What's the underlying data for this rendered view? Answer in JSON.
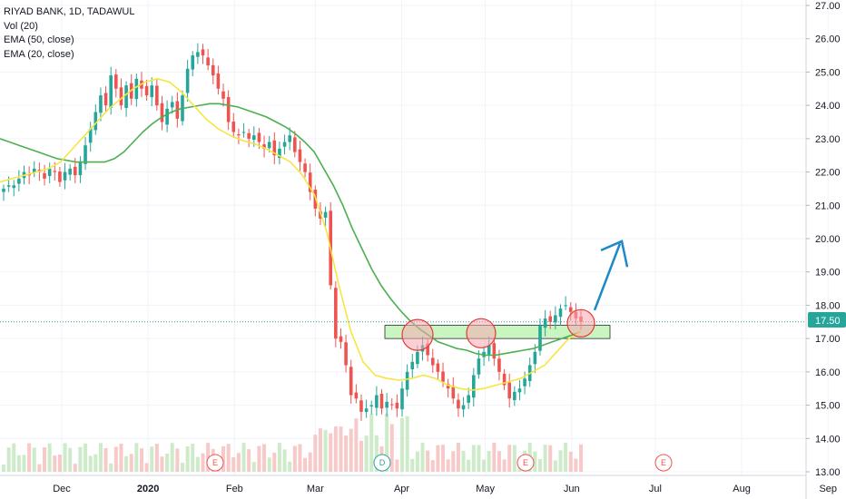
{
  "legend": {
    "symbol": "RIYAD BANK, 1D, TADAWUL",
    "vol": "Vol (20)",
    "ema50": "EMA (50, close)",
    "ema20": "EMA (20, close)"
  },
  "colors": {
    "up": "#26a69a",
    "down": "#ef5350",
    "ema50": "#4caf50",
    "ema20": "#f5e642",
    "price_line": "#26a69a",
    "zone_fill": "#c8f5c0",
    "zone_stroke": "#2a2a2a",
    "circle_fill": "#f7a8b0",
    "circle_stroke": "#e53935",
    "arrow": "#1e88c8",
    "vol_up": "#cdebc9",
    "vol_down": "#f7c9c9"
  },
  "chart_data": {
    "type": "candlestick",
    "y_ticks": [
      "27.00",
      "26.00",
      "25.00",
      "24.00",
      "23.00",
      "22.00",
      "21.00",
      "20.00",
      "19.00",
      "18.00",
      "17.00",
      "16.00",
      "15.00",
      "14.00",
      "13.00"
    ],
    "ylim": [
      13.0,
      27.0
    ],
    "last_price": "17.50",
    "months": [
      {
        "label": "Dec",
        "date": "2019-12-01"
      },
      {
        "label": "2020",
        "date": "2020-01-01"
      },
      {
        "label": "Feb",
        "date": "2020-02-01"
      },
      {
        "label": "Mar",
        "date": "2020-03-01"
      },
      {
        "label": "Apr",
        "date": "2020-04-01"
      },
      {
        "label": "May",
        "date": "2020-05-01"
      },
      {
        "label": "Jun",
        "date": "2020-06-01"
      },
      {
        "label": "Jul",
        "date": "2020-07-01"
      },
      {
        "label": "Aug",
        "date": "2020-08-01"
      },
      {
        "label": "Sep",
        "date": "2020-09-01"
      }
    ],
    "candles_close": [
      21.5,
      21.6,
      21.6,
      21.8,
      22.0,
      21.9,
      22.1,
      22.0,
      21.8,
      22.1,
      22.0,
      21.7,
      22.0,
      22.1,
      21.9,
      22.3,
      22.8,
      23.3,
      23.8,
      24.3,
      24.0,
      24.9,
      24.5,
      24.0,
      24.6,
      24.2,
      24.8,
      24.5,
      24.3,
      24.6,
      24.0,
      23.5,
      23.9,
      24.1,
      23.6,
      24.3,
      25.1,
      25.5,
      25.6,
      25.5,
      25.2,
      24.9,
      24.5,
      24.2,
      23.5,
      23.2,
      23.1,
      23.2,
      23.0,
      23.1,
      22.9,
      22.7,
      22.9,
      22.5,
      22.7,
      22.9,
      23.1,
      22.6,
      22.3,
      22.0,
      21.4,
      20.9,
      20.6,
      20.8,
      18.6,
      17.0,
      16.9,
      16.2,
      15.3,
      15.2,
      14.8,
      14.9,
      15.0,
      15.3,
      14.9,
      15.1,
      15.0,
      14.9,
      15.5,
      16.0,
      16.3,
      16.6,
      16.8,
      16.5,
      16.2,
      16.0,
      15.7,
      15.5,
      15.2,
      14.9,
      15.0,
      15.3,
      15.9,
      16.4,
      16.6,
      16.8,
      16.4,
      16.0,
      15.6,
      15.2,
      15.4,
      15.5,
      15.8,
      16.2,
      16.6,
      17.4,
      17.6,
      17.5,
      17.7,
      17.9,
      18.0,
      17.8,
      17.6,
      17.5
    ],
    "ema50": [
      23.0,
      22.9,
      22.8,
      22.7,
      22.6,
      22.5,
      22.4,
      22.35,
      22.3,
      22.3,
      22.3,
      22.3,
      22.4,
      22.6,
      22.9,
      23.2,
      23.45,
      23.65,
      23.8,
      23.9,
      23.95,
      24.0,
      24.05,
      24.05,
      24.0,
      23.95,
      23.85,
      23.75,
      23.65,
      23.5,
      23.35,
      23.15,
      22.9,
      22.6,
      22.1,
      21.6,
      21.0,
      20.3,
      19.7,
      19.1,
      18.6,
      18.2,
      17.85,
      17.55,
      17.3,
      17.1,
      16.9,
      16.8,
      16.7,
      16.65,
      16.55,
      16.5,
      16.5,
      16.55,
      16.6,
      16.65,
      16.7,
      16.8,
      16.9,
      17.0,
      17.1,
      17.2
    ],
    "ema20": [
      21.7,
      21.8,
      21.9,
      22.0,
      22.1,
      22.3,
      22.7,
      23.1,
      23.5,
      23.9,
      24.2,
      24.5,
      24.7,
      24.8,
      24.7,
      24.4,
      24.0,
      23.6,
      23.3,
      23.1,
      22.95,
      22.85,
      22.7,
      22.5,
      22.3,
      21.9,
      21.3,
      20.2,
      18.6,
      17.2,
      16.3,
      15.9,
      15.8,
      15.75,
      15.8,
      15.9,
      15.8,
      15.6,
      15.5,
      15.45,
      15.5,
      15.6,
      15.7,
      15.8,
      16.0,
      16.2,
      16.6,
      17.0,
      17.2
    ],
    "support_zone": {
      "low": 17.0,
      "high": 17.4
    },
    "events": [
      "E",
      "E",
      "D",
      "E",
      "E"
    ]
  }
}
